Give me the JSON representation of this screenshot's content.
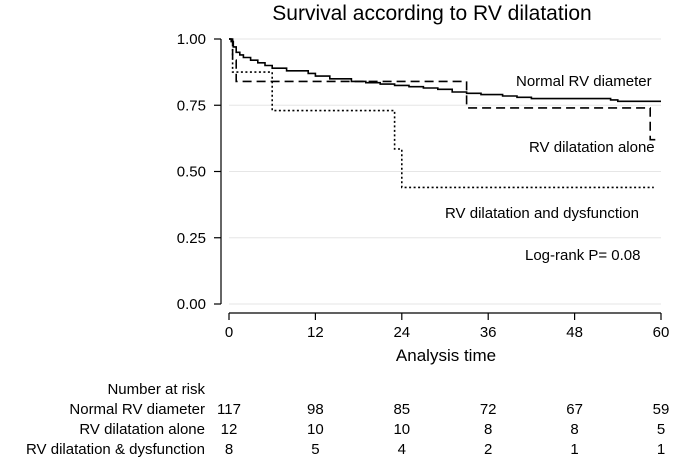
{
  "chart_data": {
    "type": "line",
    "title": "Survival according to RV dilatation",
    "xlabel": "Analysis time",
    "ylabel": "",
    "xlim": [
      0,
      60
    ],
    "ylim": [
      0,
      1
    ],
    "x_ticks": [
      0,
      12,
      24,
      36,
      48,
      60
    ],
    "y_ticks": [
      "0.00",
      "0.25",
      "0.50",
      "0.75",
      "1.00"
    ],
    "grid": true,
    "series": [
      {
        "name": "Normal RV diameter",
        "style": "solid",
        "points": [
          [
            0,
            1.0
          ],
          [
            0.3,
            0.99
          ],
          [
            0.6,
            0.97
          ],
          [
            1,
            0.95
          ],
          [
            1.5,
            0.94
          ],
          [
            2,
            0.93
          ],
          [
            3,
            0.92
          ],
          [
            4,
            0.91
          ],
          [
            5,
            0.9
          ],
          [
            6,
            0.89
          ],
          [
            8,
            0.88
          ],
          [
            11,
            0.87
          ],
          [
            12,
            0.86
          ],
          [
            14,
            0.85
          ],
          [
            17,
            0.84
          ],
          [
            19,
            0.835
          ],
          [
            21,
            0.83
          ],
          [
            23,
            0.825
          ],
          [
            25,
            0.82
          ],
          [
            27,
            0.815
          ],
          [
            29,
            0.81
          ],
          [
            31,
            0.8
          ],
          [
            33,
            0.795
          ],
          [
            35,
            0.79
          ],
          [
            38,
            0.785
          ],
          [
            40,
            0.78
          ],
          [
            42,
            0.775
          ],
          [
            48,
            0.775
          ],
          [
            53,
            0.77
          ],
          [
            54,
            0.765
          ],
          [
            60,
            0.765
          ]
        ]
      },
      {
        "name": "RV dilatation alone",
        "style": "dashed",
        "points": [
          [
            0,
            1.0
          ],
          [
            0.5,
            0.92
          ],
          [
            1,
            0.84
          ],
          [
            33,
            0.84
          ],
          [
            33,
            0.74
          ],
          [
            58.5,
            0.74
          ],
          [
            58.5,
            0.62
          ],
          [
            59.5,
            0.62
          ]
        ]
      },
      {
        "name": "RV dilatation and dysfunction",
        "style": "dotted",
        "points": [
          [
            0,
            1.0
          ],
          [
            0.5,
            0.875
          ],
          [
            2,
            0.875
          ],
          [
            6,
            0.875
          ],
          [
            6,
            0.73
          ],
          [
            23,
            0.73
          ],
          [
            23,
            0.585
          ],
          [
            24,
            0.585
          ],
          [
            24,
            0.44
          ],
          [
            59,
            0.44
          ]
        ]
      }
    ],
    "annotations": {
      "normal_label": "Normal RV diameter",
      "alone_label": "RV dilatation alone",
      "dysfunction_label": "RV dilatation and dysfunction",
      "logrank": "Log-rank P= 0.08"
    },
    "risk_table": {
      "header": "Number at risk",
      "rows": [
        {
          "label": "Normal RV diameter",
          "values": [
            "117",
            "98",
            "85",
            "72",
            "67",
            "59"
          ]
        },
        {
          "label": "RV dilatation alone",
          "values": [
            "12",
            "10",
            "10",
            "8",
            "8",
            "5"
          ]
        },
        {
          "label": "RV dilatation & dysfunction",
          "values": [
            "8",
            "5",
            "4",
            "2",
            "1",
            "1"
          ]
        }
      ]
    }
  }
}
